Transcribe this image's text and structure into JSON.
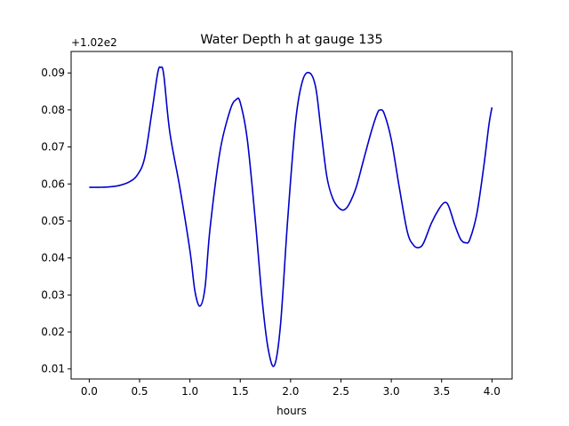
{
  "chart_data": {
    "type": "line",
    "title": "Water Depth h at gauge 135",
    "xlabel": "hours",
    "ylabel": "",
    "offset_label": "+1.02e2",
    "xlim": [
      -0.18,
      4.2
    ],
    "ylim": [
      0.0073,
      0.0958
    ],
    "x_ticks": [
      0.0,
      0.5,
      1.0,
      1.5,
      2.0,
      2.5,
      3.0,
      3.5,
      4.0
    ],
    "x_tick_labels": [
      "0.0",
      "0.5",
      "1.0",
      "1.5",
      "2.0",
      "2.5",
      "3.0",
      "3.5",
      "4.0"
    ],
    "y_ticks": [
      0.01,
      0.02,
      0.03,
      0.04,
      0.05,
      0.06,
      0.07,
      0.08,
      0.09
    ],
    "y_tick_labels": [
      "0.01",
      "0.02",
      "0.03",
      "0.04",
      "0.05",
      "0.06",
      "0.07",
      "0.08",
      "0.09"
    ],
    "grid": false,
    "legend": "none",
    "series": [
      {
        "color": "#0000cc",
        "points": [
          [
            0.0,
            0.0591
          ],
          [
            0.1,
            0.0591
          ],
          [
            0.2,
            0.0592
          ],
          [
            0.3,
            0.0596
          ],
          [
            0.4,
            0.0606
          ],
          [
            0.48,
            0.0625
          ],
          [
            0.55,
            0.067
          ],
          [
            0.62,
            0.079
          ],
          [
            0.68,
            0.09
          ],
          [
            0.71,
            0.0915
          ],
          [
            0.74,
            0.0895
          ],
          [
            0.8,
            0.074
          ],
          [
            0.9,
            0.059
          ],
          [
            1.0,
            0.042
          ],
          [
            1.05,
            0.031
          ],
          [
            1.1,
            0.027
          ],
          [
            1.15,
            0.032
          ],
          [
            1.2,
            0.048
          ],
          [
            1.3,
            0.069
          ],
          [
            1.4,
            0.08
          ],
          [
            1.46,
            0.0828
          ],
          [
            1.5,
            0.082
          ],
          [
            1.57,
            0.072
          ],
          [
            1.65,
            0.05
          ],
          [
            1.72,
            0.028
          ],
          [
            1.78,
            0.015
          ],
          [
            1.84,
            0.011
          ],
          [
            1.9,
            0.022
          ],
          [
            1.97,
            0.05
          ],
          [
            2.05,
            0.077
          ],
          [
            2.12,
            0.088
          ],
          [
            2.19,
            0.09
          ],
          [
            2.25,
            0.086
          ],
          [
            2.3,
            0.075
          ],
          [
            2.36,
            0.062
          ],
          [
            2.42,
            0.056
          ],
          [
            2.48,
            0.0535
          ],
          [
            2.53,
            0.053
          ],
          [
            2.58,
            0.0545
          ],
          [
            2.65,
            0.059
          ],
          [
            2.72,
            0.066
          ],
          [
            2.8,
            0.074
          ],
          [
            2.86,
            0.079
          ],
          [
            2.89,
            0.08
          ],
          [
            2.93,
            0.079
          ],
          [
            3.0,
            0.072
          ],
          [
            3.08,
            0.059
          ],
          [
            3.16,
            0.047
          ],
          [
            3.22,
            0.0435
          ],
          [
            3.27,
            0.0428
          ],
          [
            3.32,
            0.044
          ],
          [
            3.4,
            0.0495
          ],
          [
            3.48,
            0.0535
          ],
          [
            3.53,
            0.055
          ],
          [
            3.57,
            0.054
          ],
          [
            3.63,
            0.049
          ],
          [
            3.69,
            0.045
          ],
          [
            3.74,
            0.0441
          ],
          [
            3.78,
            0.045
          ],
          [
            3.85,
            0.052
          ],
          [
            3.92,
            0.065
          ],
          [
            3.97,
            0.076
          ],
          [
            4.0,
            0.0807
          ]
        ]
      }
    ]
  }
}
